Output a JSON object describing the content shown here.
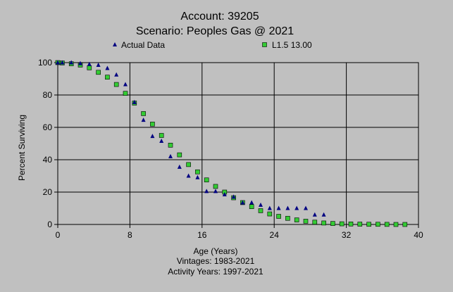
{
  "chart_data": {
    "type": "scatter",
    "title": "Account: 39205",
    "subtitle": "Scenario: Peoples Gas @ 2021",
    "xlabel": "Age (Years)",
    "ylabel": "Percent Surviving",
    "notes": [
      "Vintages: 1983-2021",
      "Activity Years: 1997-2021"
    ],
    "xlim": [
      0,
      40
    ],
    "ylim": [
      0,
      100
    ],
    "xticks": [
      0,
      8,
      16,
      24,
      32,
      40
    ],
    "yticks": [
      0,
      20,
      40,
      60,
      80,
      100
    ],
    "grid": true,
    "legend_position": "top",
    "series": [
      {
        "name": "Actual Data",
        "marker": "triangle",
        "color": "#000080",
        "x": [
          0,
          0.5,
          1.5,
          2.5,
          3.5,
          4.5,
          5.5,
          6.5,
          7.5,
          8.5,
          9.5,
          10.5,
          11.5,
          12.5,
          13.5,
          14.5,
          15.5,
          16.5,
          17.5,
          18.5,
          19.5,
          20.5,
          21.5,
          22.5,
          23.5,
          24.5,
          25.5,
          26.5,
          27.5,
          28.5,
          29.5
        ],
        "y": [
          100,
          100,
          100,
          99.5,
          99,
          98.5,
          96.5,
          92.5,
          86.5,
          75.5,
          64.5,
          54.5,
          51.5,
          42,
          35.5,
          30,
          29,
          20.5,
          20.5,
          18.5,
          17,
          13.5,
          13.5,
          12,
          10,
          10,
          10,
          10,
          10,
          6,
          6
        ]
      },
      {
        "name": "L1.5 13.00",
        "marker": "square",
        "color": "#33cc33",
        "x": [
          0,
          0.5,
          1.5,
          2.5,
          3.5,
          4.5,
          5.5,
          6.5,
          7.5,
          8.5,
          9.5,
          10.5,
          11.5,
          12.5,
          13.5,
          14.5,
          15.5,
          16.5,
          17.5,
          18.5,
          19.5,
          20.5,
          21.5,
          22.5,
          23.5,
          24.5,
          25.5,
          26.5,
          27.5,
          28.5,
          29.5,
          30.5,
          31.5,
          32.5,
          33.5,
          34.5,
          35.5,
          36.5,
          37.5,
          38.5
        ],
        "y": [
          100,
          99.8,
          99.3,
          98.5,
          96.8,
          94,
          91,
          86.5,
          81,
          75,
          68.5,
          62,
          55,
          49,
          43,
          37,
          32.5,
          27.5,
          23.5,
          20,
          16.5,
          13.5,
          11,
          8.5,
          6.5,
          5,
          3.8,
          2.8,
          2,
          1.4,
          0.9,
          0.6,
          0.4,
          0.3,
          0.2,
          0.1,
          0.1,
          0.05,
          0,
          0
        ]
      }
    ]
  }
}
